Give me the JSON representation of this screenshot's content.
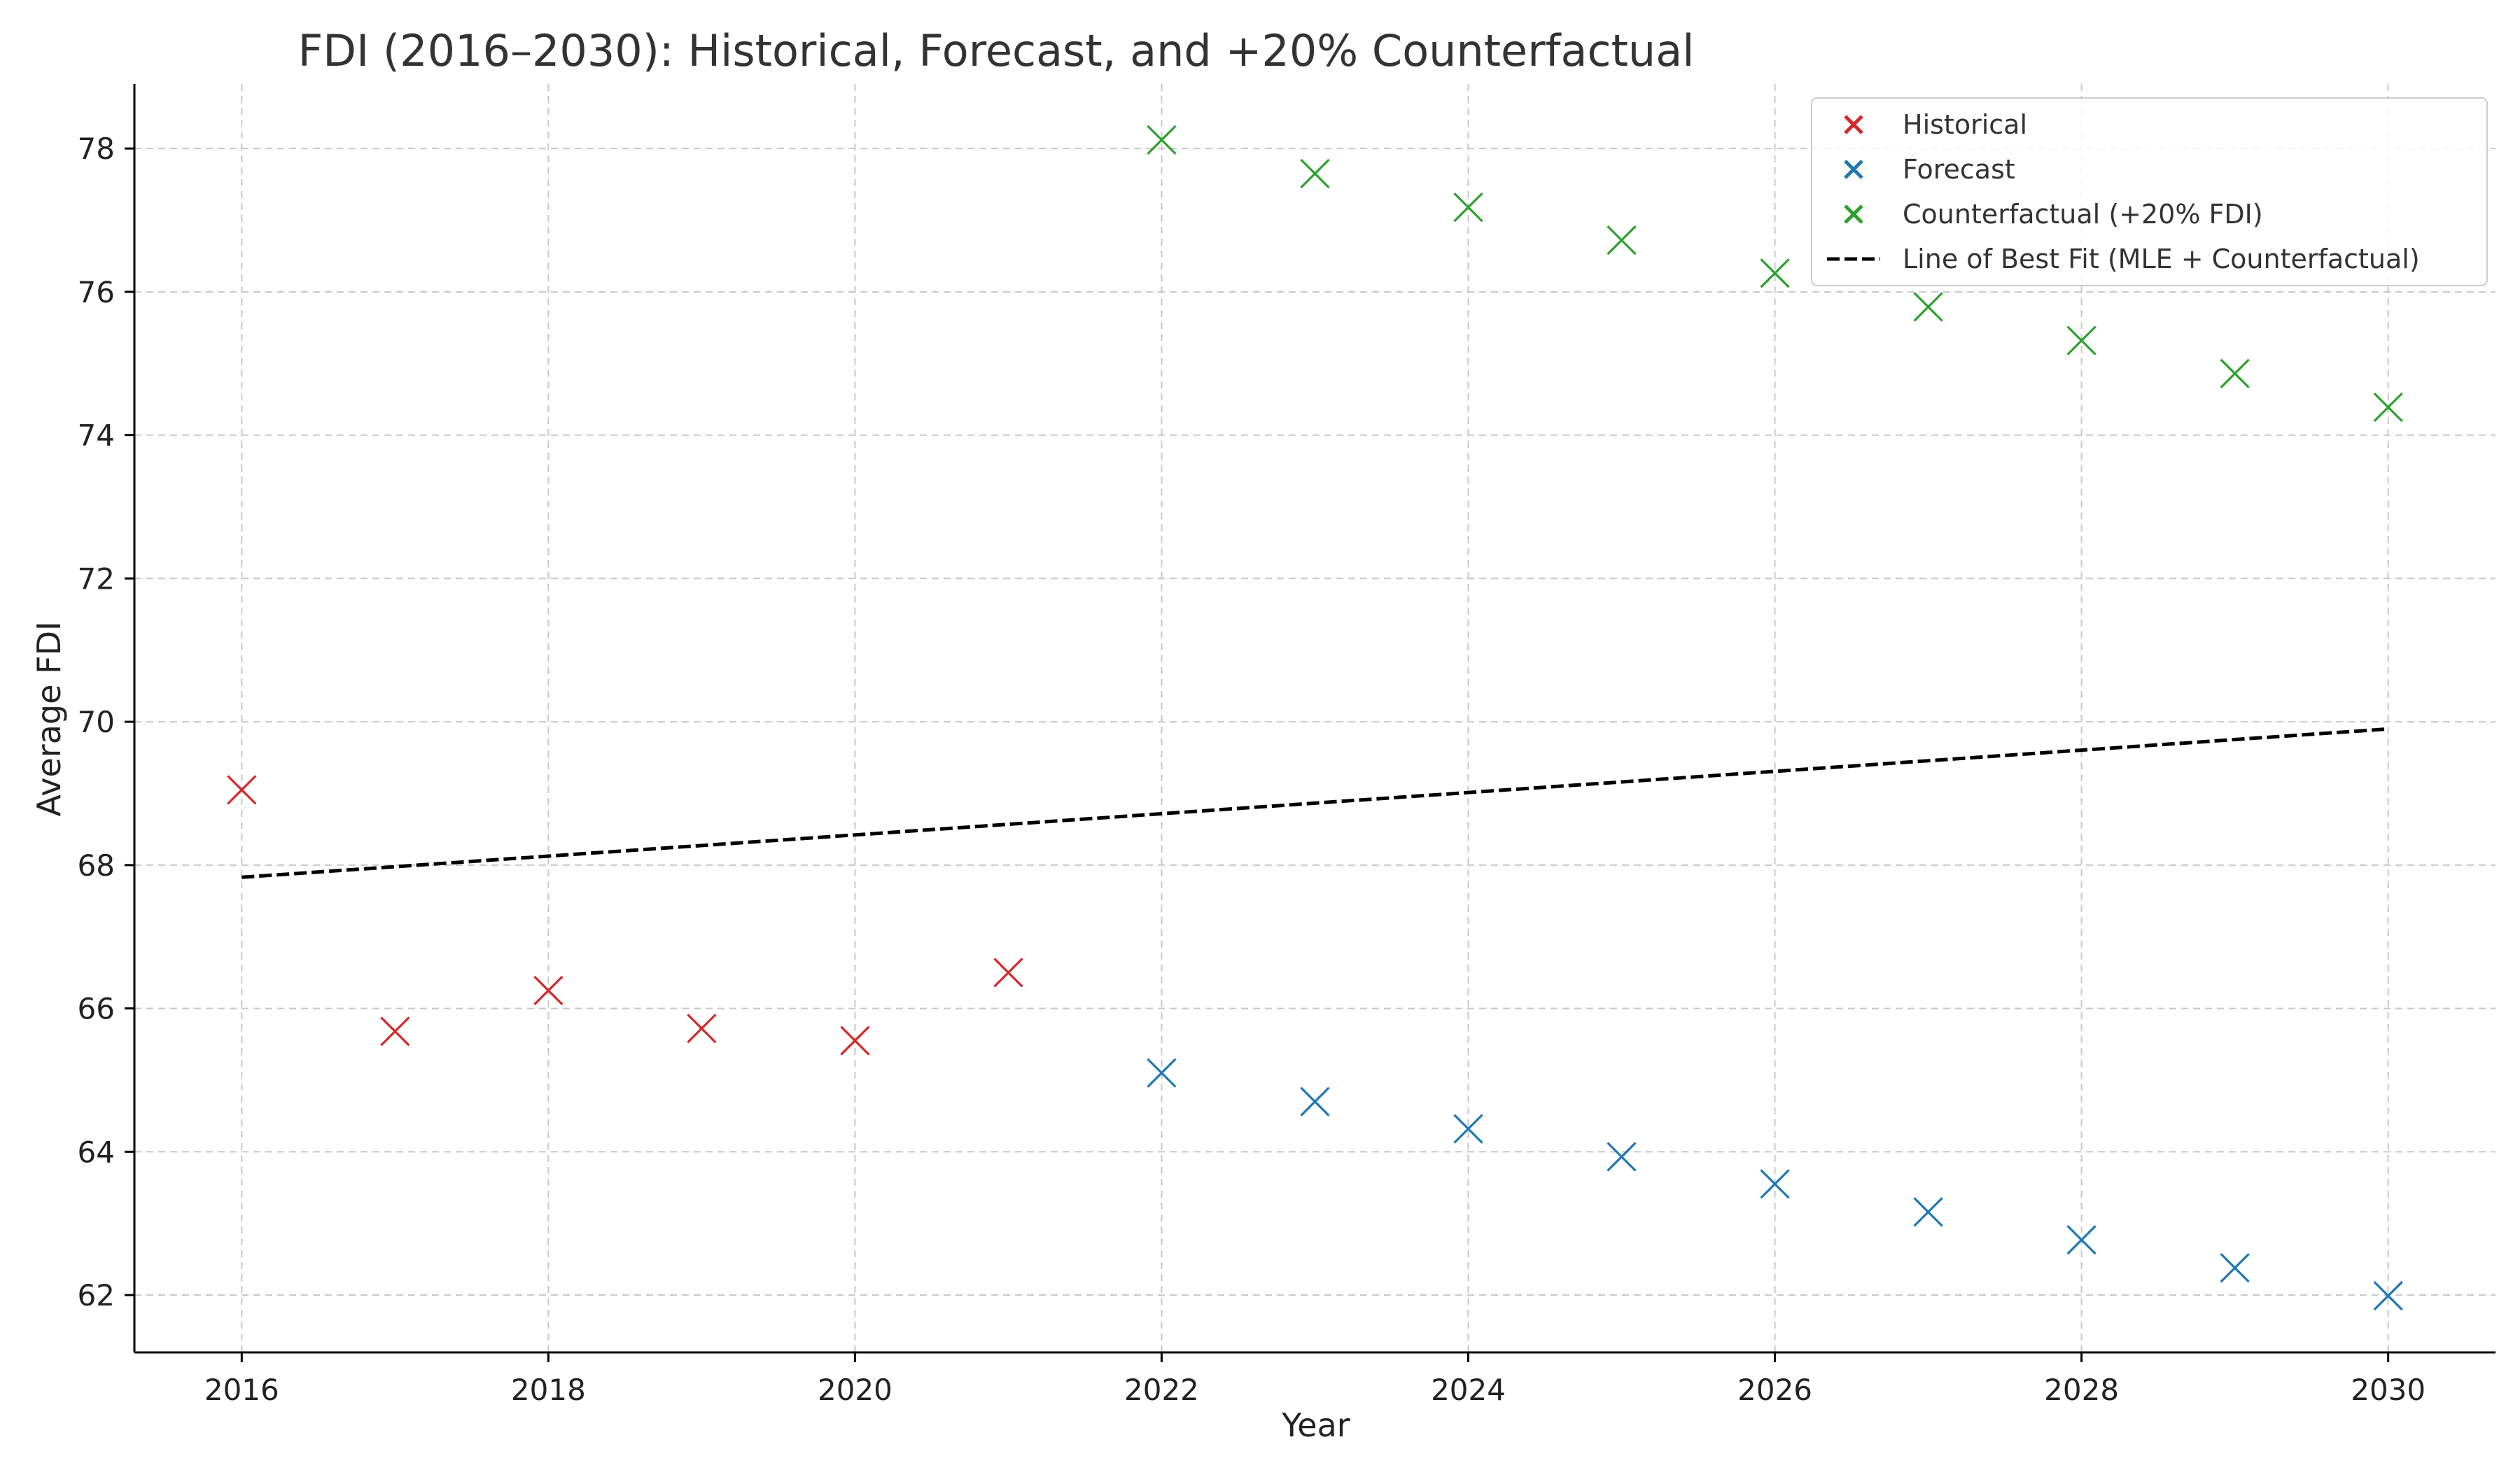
{
  "chart_data": {
    "type": "scatter",
    "title": "FDI (2016–2030): Historical, Forecast, and +20% Counterfactual",
    "xlabel": "Year",
    "ylabel": "Average FDI",
    "xlim": [
      2015.3,
      2030.7
    ],
    "ylim": [
      61.2,
      78.9
    ],
    "x_ticks": [
      2016,
      2018,
      2020,
      2022,
      2024,
      2026,
      2028,
      2030
    ],
    "y_ticks": [
      62,
      64,
      66,
      68,
      70,
      72,
      74,
      76,
      78
    ],
    "grid": true,
    "legend_position": "top-right",
    "series": [
      {
        "name": "Historical",
        "kind": "scatter",
        "marker": "x",
        "color": "#d62728",
        "x": [
          2016,
          2017,
          2018,
          2019,
          2020,
          2021
        ],
        "y": [
          69.05,
          65.68,
          66.25,
          65.72,
          65.55,
          66.5
        ]
      },
      {
        "name": "Forecast",
        "kind": "scatter",
        "marker": "x",
        "color": "#1f77b4",
        "x": [
          2022,
          2023,
          2024,
          2025,
          2026,
          2027,
          2028,
          2029,
          2030
        ],
        "y": [
          65.1,
          64.7,
          64.32,
          63.93,
          63.55,
          63.16,
          62.77,
          62.38,
          61.99
        ]
      },
      {
        "name": "Counterfactual (+20% FDI)",
        "kind": "scatter",
        "marker": "x",
        "color": "#2ca02c",
        "x": [
          2022,
          2023,
          2024,
          2025,
          2026,
          2027,
          2028,
          2029,
          2030
        ],
        "y": [
          78.12,
          77.65,
          77.18,
          76.72,
          76.26,
          75.79,
          75.32,
          74.86,
          74.39
        ]
      },
      {
        "name": "Line of Best Fit (MLE + Counterfactual)",
        "kind": "line",
        "color": "#000000",
        "line_style": "dashed",
        "x": [
          2016,
          2030
        ],
        "y": [
          67.83,
          69.9
        ]
      }
    ]
  }
}
